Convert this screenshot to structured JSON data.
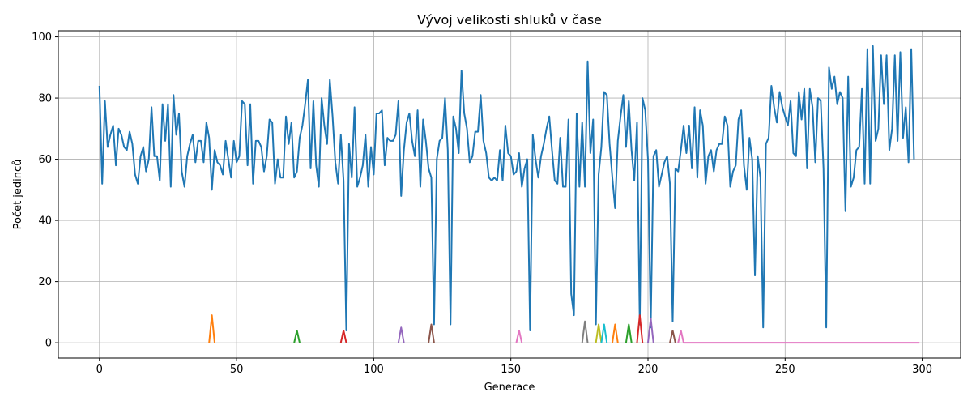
{
  "chart_data": {
    "type": "line",
    "title": "Vývoj velikosti shluků v čase",
    "xlabel": "Generace",
    "ylabel": "Počet jedinců",
    "xlim": [
      -15,
      314
    ],
    "ylim": [
      -5,
      102
    ],
    "xticks": [
      0,
      50,
      100,
      150,
      200,
      250,
      300
    ],
    "yticks": [
      0,
      20,
      40,
      60,
      80,
      100
    ],
    "grid": true,
    "legend": "none",
    "series": [
      {
        "color": "#1f77b4",
        "x_start": 0,
        "values": [
          84,
          52,
          79,
          64,
          68,
          71,
          58,
          70,
          68,
          64,
          63,
          69,
          65,
          55,
          52,
          61,
          64,
          56,
          60,
          77,
          61,
          61,
          53,
          78,
          66,
          78,
          51,
          81,
          68,
          75,
          56,
          51,
          61,
          65,
          68,
          59,
          66,
          66,
          59,
          72,
          67,
          50,
          63,
          59,
          58,
          55,
          66,
          60,
          54,
          66,
          59,
          61,
          79,
          78,
          58,
          78,
          52,
          66,
          66,
          64,
          56,
          61,
          73,
          72,
          52,
          60,
          54,
          54,
          74,
          65,
          72,
          54,
          56,
          67,
          71,
          78,
          86,
          57,
          79,
          58,
          51,
          80,
          71,
          65,
          86,
          74,
          59,
          52,
          68,
          53,
          4,
          65,
          54,
          77,
          51,
          54,
          58,
          68,
          51,
          64,
          55,
          75,
          75,
          76,
          58,
          67,
          66,
          66,
          68,
          79,
          48,
          63,
          72,
          75,
          66,
          61,
          76,
          51,
          73,
          66,
          57,
          54,
          6,
          60,
          66,
          67,
          80,
          63,
          6,
          74,
          70,
          62,
          89,
          75,
          70,
          59,
          61,
          69,
          69,
          81,
          66,
          62,
          54,
          53,
          54,
          53,
          63,
          53,
          71,
          62,
          61,
          55,
          56,
          62,
          51,
          57,
          60,
          4,
          68,
          60,
          54,
          61,
          65,
          70,
          74,
          63,
          53,
          52,
          67,
          51,
          51,
          73,
          16,
          9,
          75,
          51,
          72,
          51,
          92,
          62,
          73,
          6,
          55,
          64,
          82,
          81,
          65,
          54,
          44,
          66,
          74,
          81,
          64,
          79,
          63,
          53,
          72,
          6,
          80,
          76,
          60,
          5,
          61,
          63,
          51,
          55,
          59,
          61,
          52,
          7,
          57,
          56,
          63,
          71,
          62,
          71,
          57,
          77,
          54,
          76,
          71,
          52,
          61,
          63,
          56,
          63,
          65,
          65,
          74,
          71,
          51,
          56,
          58,
          73,
          76,
          58,
          50,
          67,
          60,
          22,
          61,
          54,
          5,
          65,
          67,
          84,
          77,
          72,
          82,
          77,
          74,
          71,
          79,
          62,
          61,
          82,
          73,
          83,
          57,
          83,
          77,
          59,
          80,
          79,
          57,
          5,
          90,
          83,
          87,
          78,
          82,
          80,
          43,
          87,
          51,
          54,
          63,
          64,
          83,
          52,
          96,
          52,
          97,
          66,
          70,
          94,
          78,
          94,
          63,
          70,
          94,
          66,
          95,
          67,
          77,
          59,
          96,
          60
        ]
      },
      {
        "color": "#ff7f0e",
        "points": [
          [
            40,
            0
          ],
          [
            41,
            9
          ],
          [
            42,
            0
          ]
        ]
      },
      {
        "color": "#2ca02c",
        "points": [
          [
            71,
            0
          ],
          [
            72,
            4
          ],
          [
            73,
            0
          ]
        ]
      },
      {
        "color": "#d62728",
        "points": [
          [
            88,
            0
          ],
          [
            89,
            4
          ],
          [
            90,
            0
          ]
        ]
      },
      {
        "color": "#9467bd",
        "points": [
          [
            109,
            0
          ],
          [
            110,
            5
          ],
          [
            111,
            0
          ]
        ]
      },
      {
        "color": "#8c564b",
        "points": [
          [
            120,
            0
          ],
          [
            121,
            6
          ],
          [
            122,
            0
          ]
        ]
      },
      {
        "color": "#e377c2",
        "points": [
          [
            152,
            0
          ],
          [
            153,
            4
          ],
          [
            154,
            0
          ]
        ]
      },
      {
        "color": "#7f7f7f",
        "points": [
          [
            176,
            0
          ],
          [
            177,
            7
          ],
          [
            178,
            0
          ]
        ]
      },
      {
        "color": "#bcbd22",
        "points": [
          [
            181,
            0
          ],
          [
            182,
            6
          ],
          [
            183,
            0
          ]
        ]
      },
      {
        "color": "#17becf",
        "points": [
          [
            183,
            0
          ],
          [
            184,
            6
          ],
          [
            185,
            0
          ]
        ]
      },
      {
        "color": "#ff7f0e",
        "points": [
          [
            187,
            0
          ],
          [
            188,
            6
          ],
          [
            189,
            0
          ]
        ]
      },
      {
        "color": "#2ca02c",
        "points": [
          [
            192,
            0
          ],
          [
            193,
            6
          ],
          [
            194,
            0
          ]
        ]
      },
      {
        "color": "#d62728",
        "points": [
          [
            196,
            0
          ],
          [
            197,
            9
          ],
          [
            198,
            0
          ]
        ]
      },
      {
        "color": "#9467bd",
        "points": [
          [
            200,
            0
          ],
          [
            201,
            8
          ],
          [
            202,
            0
          ]
        ]
      },
      {
        "color": "#8c564b",
        "points": [
          [
            208,
            0
          ],
          [
            209,
            4
          ],
          [
            210,
            0
          ]
        ]
      },
      {
        "color": "#e377c2",
        "points": [
          [
            211,
            0
          ],
          [
            212,
            4
          ],
          [
            213,
            0
          ],
          [
            299,
            0
          ]
        ]
      }
    ]
  }
}
